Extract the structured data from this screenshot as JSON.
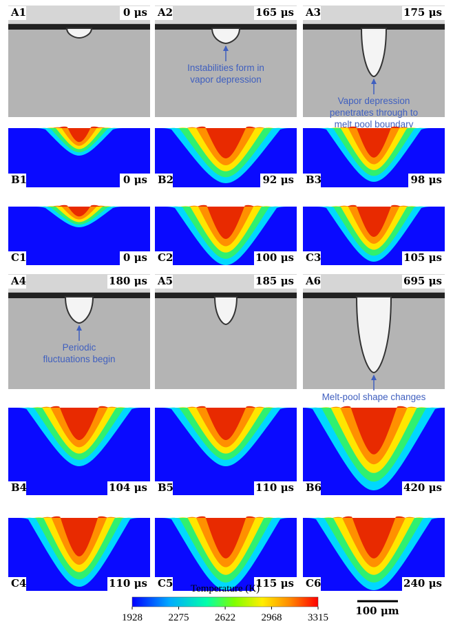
{
  "panels": [
    {
      "label": "A1",
      "time": "0 μs"
    },
    {
      "label": "A2",
      "time": "165 μs",
      "annotation": [
        "Instabilities form in",
        "vapor depression"
      ]
    },
    {
      "label": "A3",
      "time": "175 μs",
      "annotation": [
        "Vapor depression",
        "penetrates through to",
        "melt pool boundary"
      ]
    },
    {
      "label": "B1",
      "time": "0 μs"
    },
    {
      "label": "B2",
      "time": "92 μs"
    },
    {
      "label": "B3",
      "time": "98 μs"
    },
    {
      "label": "C1",
      "time": "0 μs"
    },
    {
      "label": "C2",
      "time": "100 μs"
    },
    {
      "label": "C3",
      "time": "105 μs"
    },
    {
      "label": "A4",
      "time": "180 μs",
      "annotation": [
        "Periodic",
        "fluctuations begin"
      ]
    },
    {
      "label": "A5",
      "time": "185 μs"
    },
    {
      "label": "A6",
      "time": "695 μs",
      "annotation": [
        "Melt-pool shape changes"
      ]
    },
    {
      "label": "B4",
      "time": "104 μs"
    },
    {
      "label": "B5",
      "time": "110 μs"
    },
    {
      "label": "B6",
      "time": "420 μs"
    },
    {
      "label": "C4",
      "time": "110 μs"
    },
    {
      "label": "C5",
      "time": "115 μs"
    },
    {
      "label": "C6",
      "time": "240 μs"
    }
  ],
  "colorbar": {
    "title": "Temperature (K)",
    "ticks": [
      1928,
      2275,
      2622,
      2968,
      3315
    ]
  },
  "scale_bar": "100 μm"
}
